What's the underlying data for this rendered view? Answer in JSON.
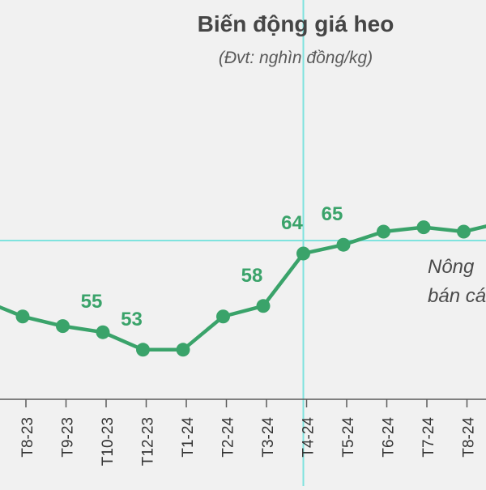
{
  "title": "Biến động giá heo",
  "subtitle": "(Đvt: nghìn đồng/kg)",
  "note_lines": [
    "Nông",
    "bán cá"
  ],
  "colors": {
    "line": "#3aa36a",
    "label": "#3aa36a",
    "crosshair": "#7fe3de",
    "axis": "#5a5a5a",
    "tick_text": "#333333"
  },
  "chart_data": {
    "type": "line",
    "title": "Biến động giá heo",
    "subtitle": "(Đvt: nghìn đồng/kg)",
    "xlabel": "",
    "ylabel": "",
    "categories": [
      "T8-23",
      "T9-23",
      "T10-23",
      "T12-23",
      "T1-24",
      "T2-24",
      "T3-24",
      "T4-24",
      "T5-24",
      "T6-24",
      "T7-24",
      "T8-24"
    ],
    "values": [
      56.8,
      55.7,
      55,
      53,
      53,
      56.8,
      58,
      64,
      65,
      66.5,
      67,
      66.5
    ],
    "data_labels": [
      {
        "index": 2,
        "text": "55"
      },
      {
        "index": 3,
        "text": "53"
      },
      {
        "index": 6,
        "text": "58"
      },
      {
        "index": 7,
        "text": "64"
      },
      {
        "index": 8,
        "text": "65"
      }
    ],
    "grid": false,
    "crosshair": {
      "category_index": 7,
      "value": 64
    }
  }
}
